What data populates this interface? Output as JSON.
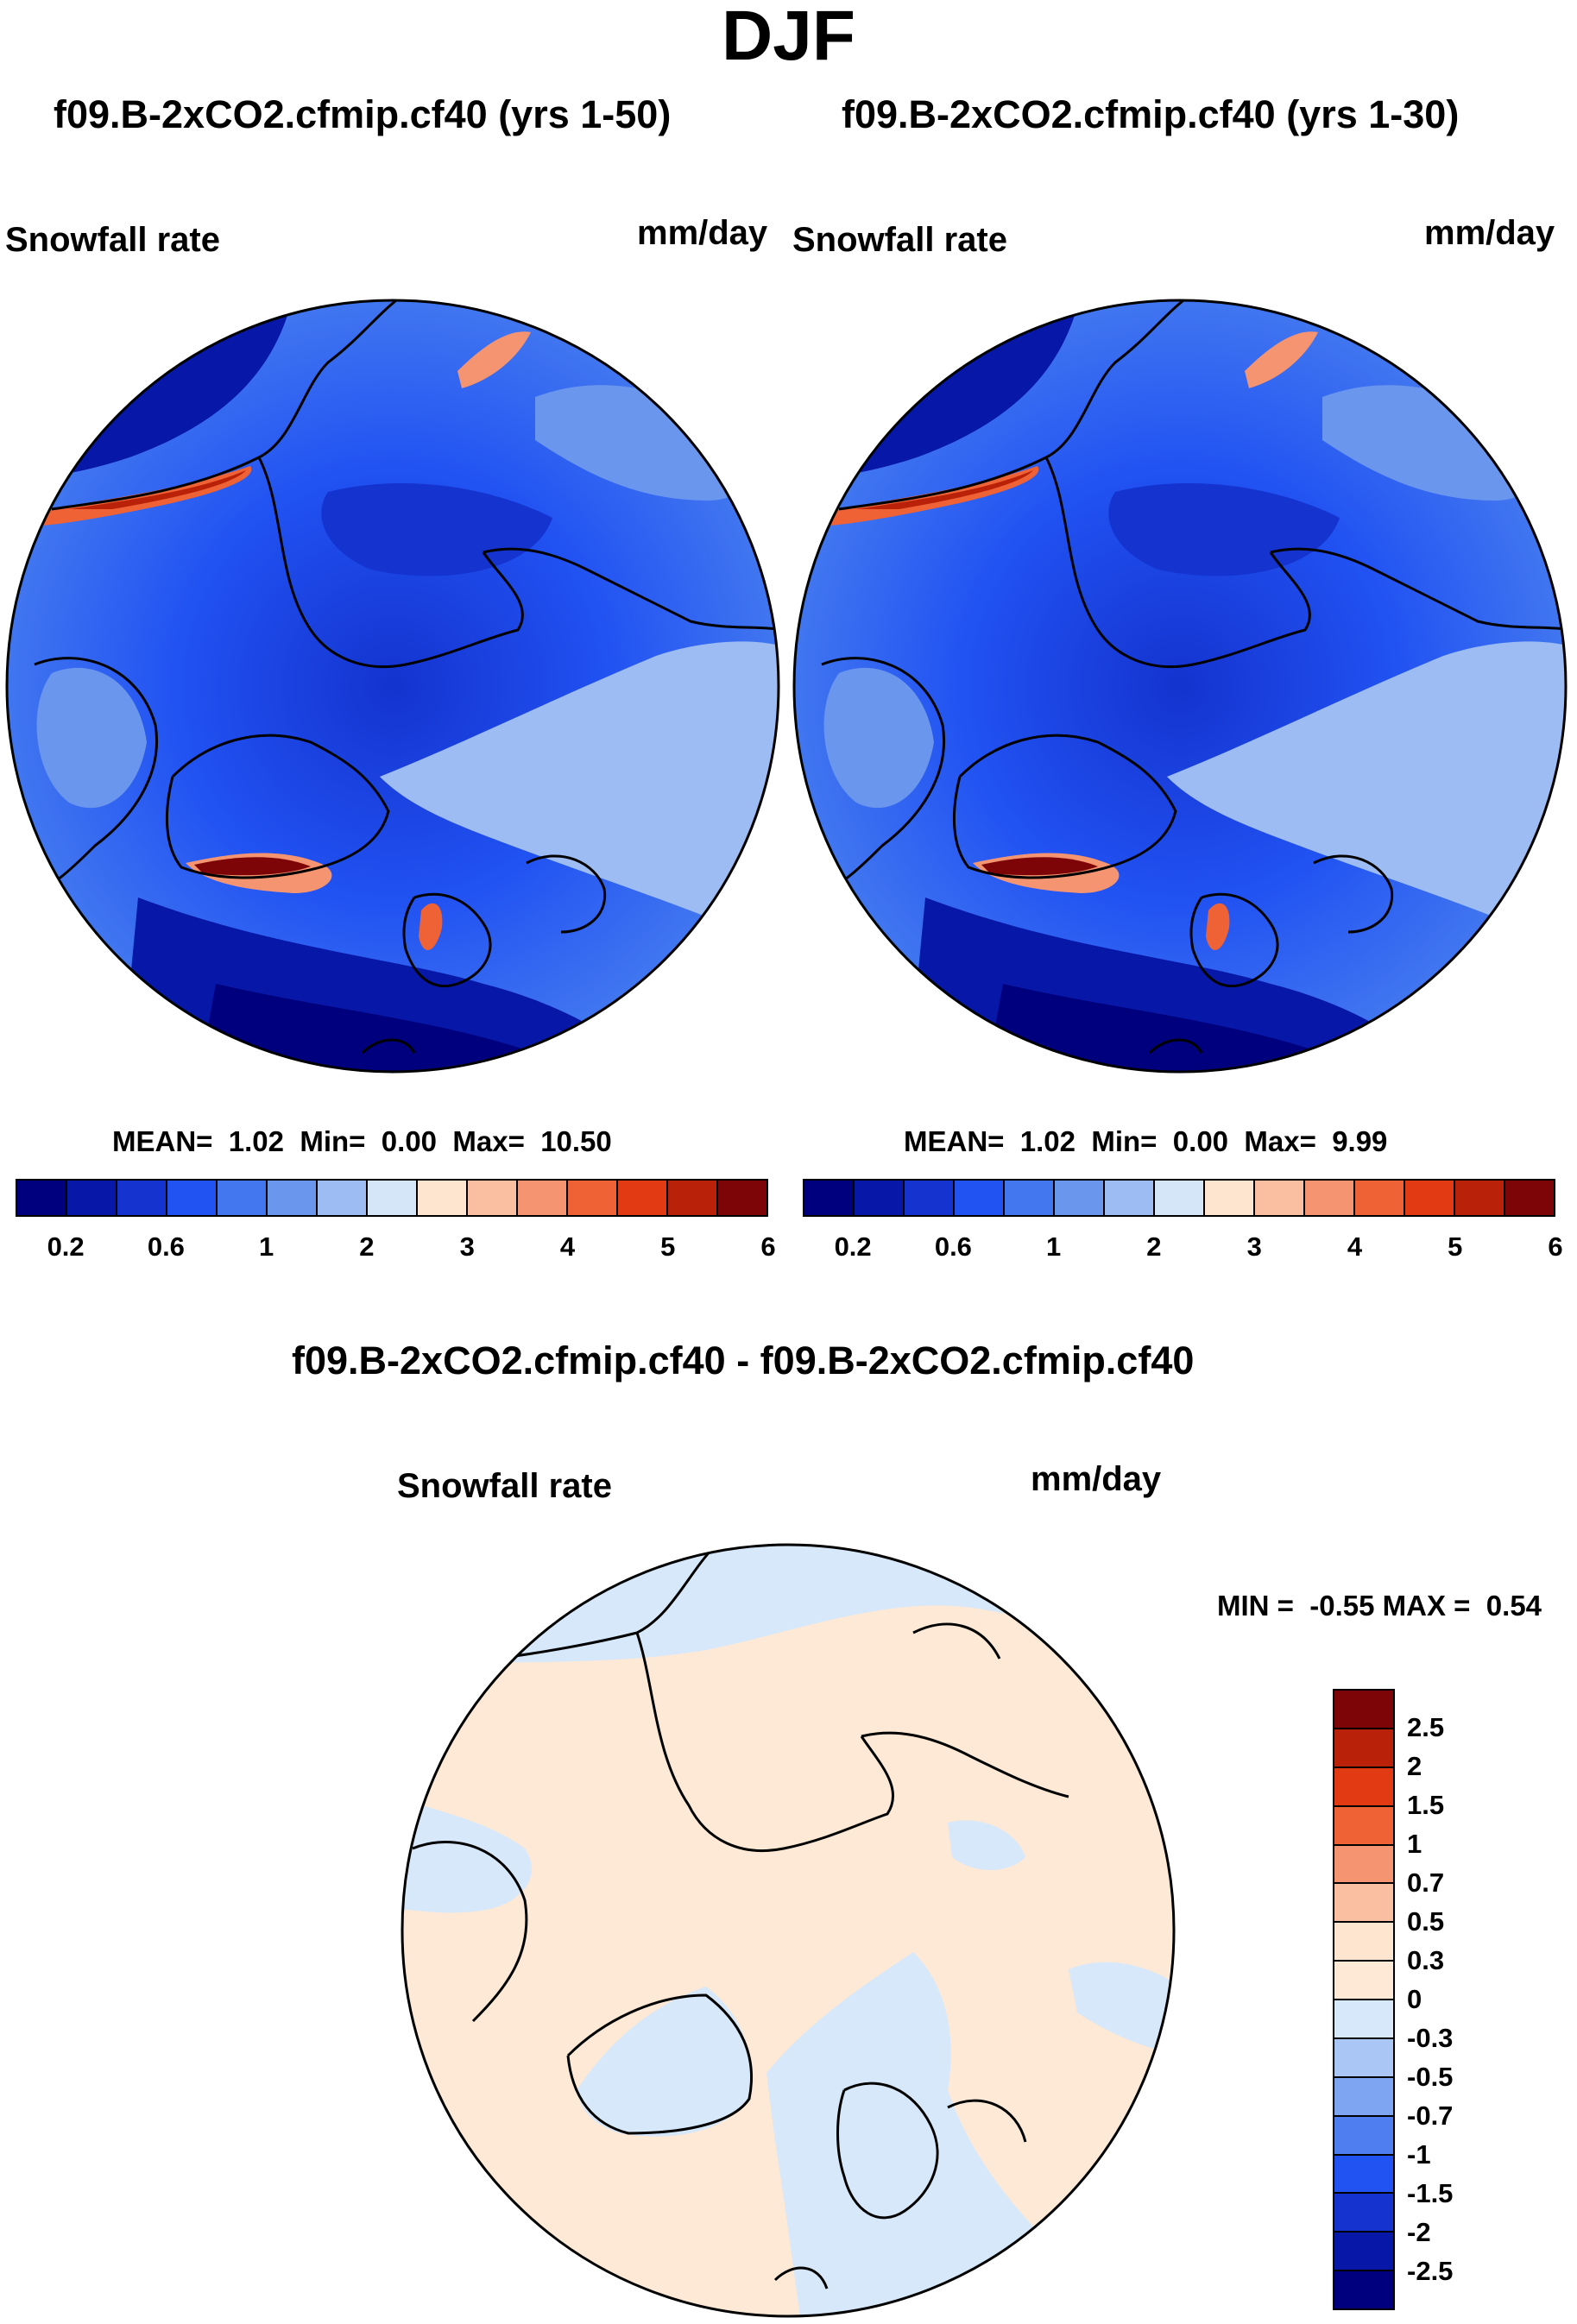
{
  "header": {
    "season": "DJF"
  },
  "panels": [
    {
      "title": "f09.B-2xCO2.cfmip.cf40 (yrs 1-50)",
      "variable": "Snowfall rate",
      "units": "mm/day",
      "stats": {
        "mean_label": "MEAN=",
        "mean": "1.02",
        "min_label": "Min=",
        "min": "0.00",
        "max_label": "Max=",
        "max": "10.50"
      }
    },
    {
      "title": "f09.B-2xCO2.cfmip.cf40 (yrs 1-30)",
      "variable": "Snowfall rate",
      "units": "mm/day",
      "stats": {
        "mean_label": "MEAN=",
        "mean": "1.02",
        "min_label": "Min=",
        "min": "0.00",
        "max_label": "Max=",
        "max": "9.99"
      }
    }
  ],
  "colorbar_top": {
    "colors": [
      "#00007f",
      "#0718a8",
      "#1433cf",
      "#2152f2",
      "#4277f0",
      "#6b96ee",
      "#9cbcf3",
      "#d4e6f8",
      "#fde5cf",
      "#f9bfa0",
      "#f59470",
      "#ef6236",
      "#e23a13",
      "#b92108",
      "#7d0507"
    ],
    "tick_labels": [
      "0.2",
      "0.6",
      "1",
      "2",
      "3",
      "4",
      "5",
      "6"
    ]
  },
  "diff_panel": {
    "title": "f09.B-2xCO2.cfmip.cf40 - f09.B-2xCO2.cfmip.cf40",
    "variable": "Snowfall rate",
    "units": "mm/day",
    "stats": {
      "min_label": "MIN =",
      "min": "-0.55",
      "max_label": "MAX =",
      "max": "0.54"
    },
    "colorbar": {
      "colors": [
        "#7d0507",
        "#b92108",
        "#e23a13",
        "#ef6236",
        "#f59470",
        "#f9bfa0",
        "#fde5cf",
        "#fde9d6",
        "#d6e8fa",
        "#a9c6f5",
        "#7ea5f2",
        "#4e7ef0",
        "#2152f2",
        "#1433cf",
        "#0718a8",
        "#00007f"
      ],
      "tick_labels": [
        "2.5",
        "2",
        "1.5",
        "1",
        "0.7",
        "0.5",
        "0.3",
        "0",
        "-0.3",
        "-0.5",
        "-0.7",
        "-1",
        "-1.5",
        "-2",
        "-2.5"
      ]
    }
  }
}
